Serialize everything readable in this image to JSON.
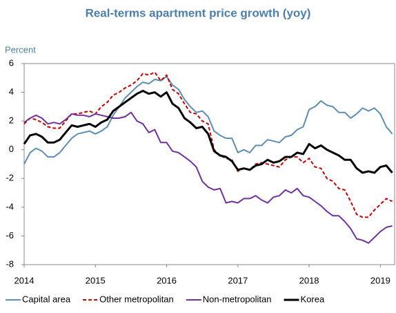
{
  "chart_data": {
    "type": "line",
    "title": "Real-terms apartment price growth (yoy)",
    "y_label": "Percent",
    "x": [
      2014,
      2014.083,
      2014.167,
      2014.25,
      2014.333,
      2014.417,
      2014.5,
      2014.583,
      2014.667,
      2014.75,
      2014.833,
      2014.917,
      2015,
      2015.083,
      2015.167,
      2015.25,
      2015.333,
      2015.417,
      2015.5,
      2015.583,
      2015.667,
      2015.75,
      2015.833,
      2015.917,
      2016,
      2016.083,
      2016.167,
      2016.25,
      2016.333,
      2016.417,
      2016.5,
      2016.583,
      2016.667,
      2016.75,
      2016.833,
      2016.917,
      2017,
      2017.083,
      2017.167,
      2017.25,
      2017.333,
      2017.417,
      2017.5,
      2017.583,
      2017.667,
      2017.75,
      2017.833,
      2017.917,
      2018,
      2018.083,
      2018.167,
      2018.25,
      2018.333,
      2018.417,
      2018.5,
      2018.583,
      2018.667,
      2018.75,
      2018.833,
      2018.917,
      2019,
      2019.083,
      2019.167
    ],
    "series": [
      {
        "name": "Capital area",
        "color": "#5b8db8",
        "style": "solid",
        "values": [
          -1.0,
          -0.2,
          0.1,
          -0.1,
          -0.5,
          -0.5,
          -0.2,
          0.3,
          0.8,
          1.1,
          1.2,
          1.3,
          1.1,
          1.3,
          1.6,
          2.4,
          3.0,
          3.6,
          4.0,
          4.4,
          4.7,
          4.6,
          4.9,
          4.8,
          5.1,
          4.5,
          4.2,
          3.5,
          3.0,
          2.6,
          2.7,
          2.3,
          1.3,
          1.0,
          0.8,
          0.8,
          -0.2,
          0.0,
          -0.2,
          0.3,
          0.3,
          0.7,
          0.6,
          0.5,
          0.9,
          1.0,
          1.4,
          1.6,
          2.8,
          3.0,
          3.4,
          3.1,
          3.0,
          2.6,
          2.6,
          2.2,
          2.5,
          2.9,
          2.7,
          2.9,
          2.5,
          1.6,
          1.1
        ]
      },
      {
        "name": "Other metropolitan",
        "color": "#cc0000",
        "style": "dashed",
        "values": [
          1.8,
          2.2,
          2.1,
          1.9,
          1.6,
          1.5,
          1.5,
          2.0,
          2.5,
          2.5,
          2.6,
          2.7,
          2.5,
          3.0,
          3.3,
          3.8,
          4.0,
          4.3,
          4.5,
          4.8,
          5.3,
          5.2,
          5.4,
          4.8,
          5.2,
          4.2,
          3.9,
          3.2,
          2.6,
          2.5,
          2.0,
          1.8,
          0.0,
          -0.4,
          -0.6,
          -0.7,
          -1.5,
          -1.3,
          -1.4,
          -1.0,
          -0.9,
          -1.0,
          -1.1,
          -1.2,
          -0.7,
          -0.5,
          -0.5,
          -0.9,
          -0.6,
          -1.2,
          -1.3,
          -2.0,
          -2.2,
          -2.7,
          -2.8,
          -3.6,
          -4.5,
          -4.7,
          -4.7,
          -4.2,
          -3.8,
          -3.4,
          -3.6
        ]
      },
      {
        "name": "Non-metropolitan",
        "color": "#7030a0",
        "style": "solid",
        "values": [
          1.9,
          2.2,
          2.4,
          2.2,
          1.8,
          1.9,
          1.8,
          2.1,
          2.5,
          2.4,
          2.4,
          2.3,
          2.5,
          2.4,
          2.3,
          2.2,
          2.2,
          2.3,
          2.6,
          2.0,
          1.8,
          1.2,
          1.4,
          0.5,
          0.5,
          -0.1,
          -0.2,
          -0.5,
          -0.8,
          -1.2,
          -2.2,
          -2.6,
          -2.8,
          -2.7,
          -3.7,
          -3.6,
          -3.7,
          -3.4,
          -3.4,
          -3.2,
          -3.5,
          -3.7,
          -3.3,
          -3.2,
          -2.8,
          -3.0,
          -2.7,
          -3.2,
          -3.3,
          -3.6,
          -3.9,
          -4.3,
          -4.6,
          -4.6,
          -5.0,
          -5.5,
          -6.2,
          -6.3,
          -6.5,
          -6.1,
          -5.7,
          -5.4,
          -5.3
        ]
      },
      {
        "name": "Korea",
        "color": "#000000",
        "style": "thick",
        "values": [
          0.4,
          1.0,
          1.1,
          0.9,
          0.5,
          0.5,
          0.7,
          1.2,
          1.7,
          1.6,
          1.7,
          1.8,
          1.6,
          1.9,
          2.1,
          2.7,
          3.0,
          3.3,
          3.6,
          3.9,
          4.1,
          3.9,
          4.0,
          3.7,
          4.0,
          3.2,
          2.9,
          2.2,
          1.9,
          1.5,
          1.6,
          1.1,
          -0.1,
          -0.4,
          -0.5,
          -0.8,
          -1.4,
          -1.3,
          -1.4,
          -1.1,
          -1.0,
          -0.7,
          -0.9,
          -0.8,
          -0.5,
          -0.5,
          -0.2,
          -0.3,
          0.4,
          0.1,
          0.3,
          0.0,
          -0.2,
          -0.4,
          -0.7,
          -0.7,
          -1.3,
          -1.6,
          -1.5,
          -1.6,
          -1.2,
          -1.1,
          -1.6
        ]
      }
    ],
    "xlim": [
      2014,
      2019.2
    ],
    "xticks": [
      2014,
      2015,
      2016,
      2017,
      2018,
      2019
    ],
    "ylim": [
      -8,
      6
    ],
    "yticks": [
      -8,
      -6,
      -4,
      -2,
      0,
      2,
      4,
      6
    ],
    "legend": "bottom"
  }
}
